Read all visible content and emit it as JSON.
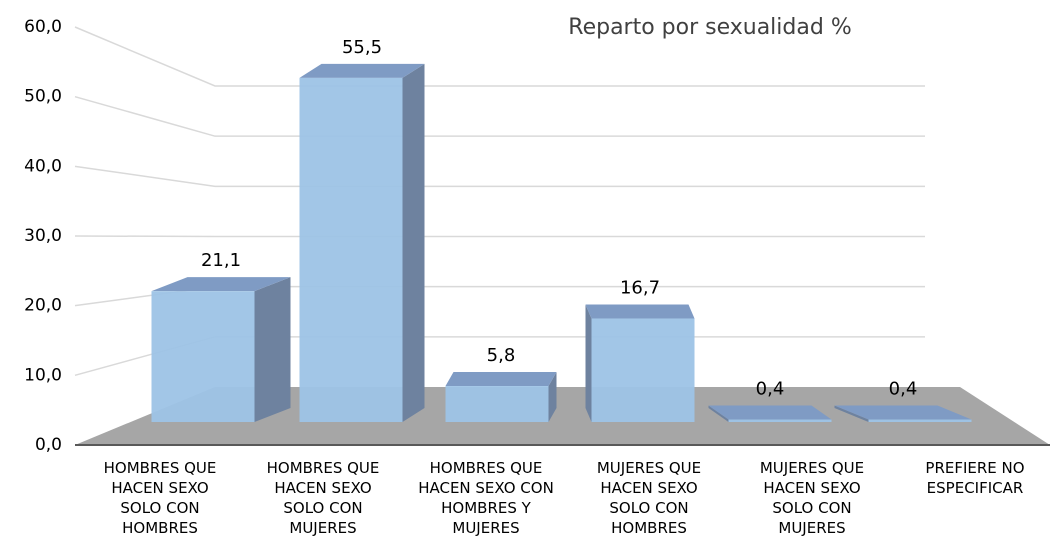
{
  "chart_data": {
    "type": "bar3d",
    "title": "Reparto por sexualidad %",
    "categories": [
      "HOMBRES QUE HACEN SEXO SOLO CON HOMBRES",
      "HOMBRES QUE HACEN SEXO SOLO CON MUJERES",
      "HOMBRES QUE HACEN SEXO CON HOMBRES Y MUJERES",
      "MUJERES QUE HACEN SEXO SOLO CON HOMBRES",
      "MUJERES QUE HACEN SEXO SOLO CON MUJERES",
      "PREFIERE NO ESPECIFICAR"
    ],
    "values": [
      21.1,
      55.5,
      5.8,
      16.7,
      0.4,
      0.4
    ],
    "value_labels": [
      "21,1",
      "55,5",
      "5,8",
      "16,7",
      "0,4",
      "0,4"
    ],
    "color": "#9dc3e6",
    "ylim": [
      0,
      60
    ],
    "yticks": [
      {
        "value": 0,
        "label": "0,0"
      },
      {
        "value": 10,
        "label": "10,0"
      },
      {
        "value": 20,
        "label": "20,0"
      },
      {
        "value": 30,
        "label": "30,0"
      },
      {
        "value": 40,
        "label": "40,0"
      },
      {
        "value": 50,
        "label": "50,0"
      },
      {
        "value": 60,
        "label": "60,0"
      }
    ],
    "grid": true
  }
}
